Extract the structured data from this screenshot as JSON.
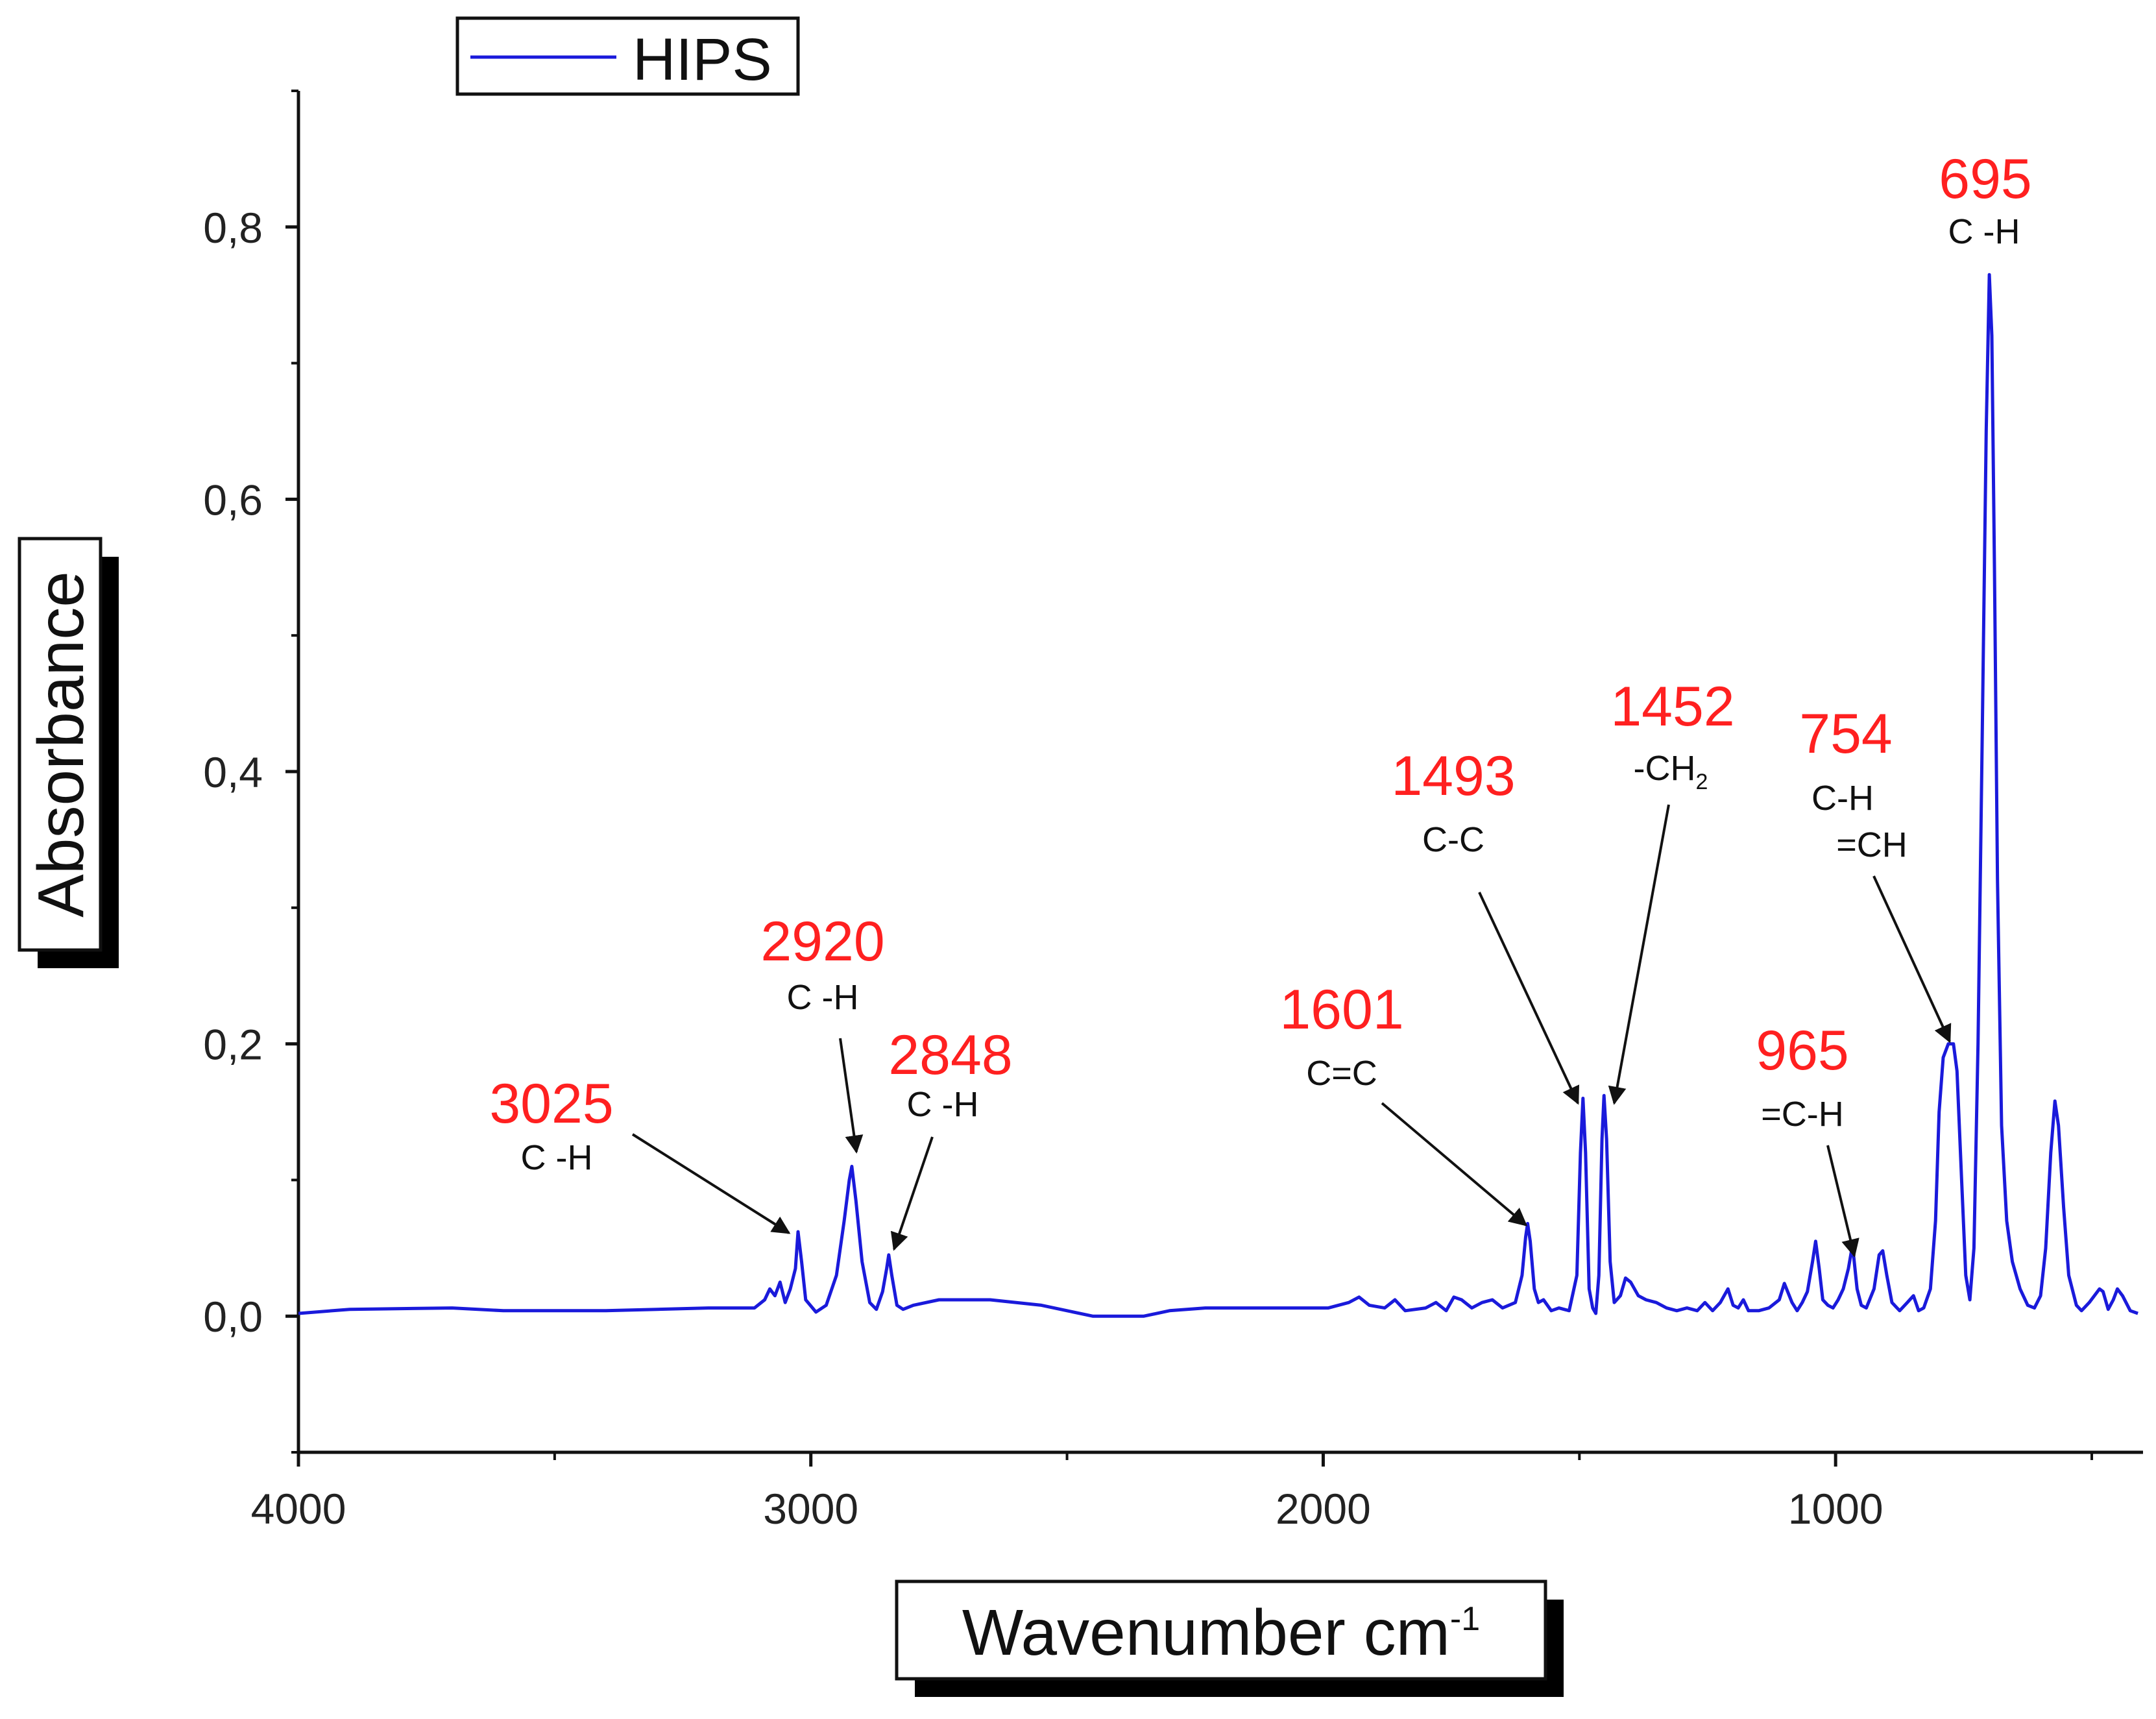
{
  "chart_data": {
    "type": "line",
    "xlabel": "Wavenumber  cm",
    "xlabel_sup": "-1",
    "ylabel": "Absorbance",
    "xlim": [
      4000,
      400
    ],
    "ylim": [
      -0.1,
      0.9
    ],
    "x_ticks": [
      4000,
      3000,
      2000,
      1000
    ],
    "x_tick_labels": [
      "4000",
      "3000",
      "2000",
      "1000"
    ],
    "y_ticks": [
      0.0,
      0.2,
      0.4,
      0.6,
      0.8
    ],
    "y_tick_labels": [
      "0,0",
      "0,2",
      "0,4",
      "0,6",
      "0,8"
    ],
    "legend": {
      "position": "top-left",
      "entries": [
        {
          "name": "HIPS",
          "color": "#1a1adb"
        }
      ]
    },
    "series": [
      {
        "name": "HIPS",
        "color": "#1a1adb",
        "points": [
          [
            4000,
            0.002
          ],
          [
            3900,
            0.005
          ],
          [
            3700,
            0.006
          ],
          [
            3600,
            0.004
          ],
          [
            3400,
            0.004
          ],
          [
            3300,
            0.005
          ],
          [
            3200,
            0.006
          ],
          [
            3110,
            0.006
          ],
          [
            3090,
            0.012
          ],
          [
            3080,
            0.02
          ],
          [
            3070,
            0.015
          ],
          [
            3060,
            0.025
          ],
          [
            3050,
            0.01
          ],
          [
            3040,
            0.02
          ],
          [
            3030,
            0.035
          ],
          [
            3025,
            0.062
          ],
          [
            3018,
            0.04
          ],
          [
            3010,
            0.012
          ],
          [
            2990,
            0.003
          ],
          [
            2970,
            0.008
          ],
          [
            2950,
            0.03
          ],
          [
            2935,
            0.07
          ],
          [
            2925,
            0.1
          ],
          [
            2920,
            0.11
          ],
          [
            2912,
            0.085
          ],
          [
            2900,
            0.04
          ],
          [
            2885,
            0.01
          ],
          [
            2872,
            0.005
          ],
          [
            2860,
            0.018
          ],
          [
            2852,
            0.035
          ],
          [
            2848,
            0.045
          ],
          [
            2842,
            0.03
          ],
          [
            2832,
            0.008
          ],
          [
            2820,
            0.005
          ],
          [
            2800,
            0.008
          ],
          [
            2750,
            0.012
          ],
          [
            2650,
            0.012
          ],
          [
            2550,
            0.008
          ],
          [
            2500,
            0.004
          ],
          [
            2450,
            0.0
          ],
          [
            2350,
            0.0
          ],
          [
            2300,
            0.004
          ],
          [
            2230,
            0.006
          ],
          [
            2100,
            0.006
          ],
          [
            1990,
            0.006
          ],
          [
            1950,
            0.01
          ],
          [
            1930,
            0.014
          ],
          [
            1910,
            0.008
          ],
          [
            1880,
            0.006
          ],
          [
            1860,
            0.012
          ],
          [
            1840,
            0.004
          ],
          [
            1800,
            0.006
          ],
          [
            1780,
            0.01
          ],
          [
            1760,
            0.004
          ],
          [
            1745,
            0.014
          ],
          [
            1730,
            0.012
          ],
          [
            1710,
            0.006
          ],
          [
            1690,
            0.01
          ],
          [
            1670,
            0.012
          ],
          [
            1650,
            0.006
          ],
          [
            1625,
            0.01
          ],
          [
            1612,
            0.03
          ],
          [
            1605,
            0.058
          ],
          [
            1601,
            0.068
          ],
          [
            1596,
            0.055
          ],
          [
            1588,
            0.02
          ],
          [
            1580,
            0.01
          ],
          [
            1570,
            0.012
          ],
          [
            1555,
            0.004
          ],
          [
            1540,
            0.006
          ],
          [
            1520,
            0.004
          ],
          [
            1505,
            0.03
          ],
          [
            1498,
            0.12
          ],
          [
            1493,
            0.16
          ],
          [
            1488,
            0.12
          ],
          [
            1481,
            0.02
          ],
          [
            1474,
            0.006
          ],
          [
            1468,
            0.002
          ],
          [
            1462,
            0.03
          ],
          [
            1456,
            0.13
          ],
          [
            1452,
            0.162
          ],
          [
            1447,
            0.13
          ],
          [
            1440,
            0.04
          ],
          [
            1432,
            0.01
          ],
          [
            1420,
            0.015
          ],
          [
            1410,
            0.028
          ],
          [
            1400,
            0.025
          ],
          [
            1385,
            0.015
          ],
          [
            1370,
            0.012
          ],
          [
            1350,
            0.01
          ],
          [
            1330,
            0.006
          ],
          [
            1310,
            0.004
          ],
          [
            1290,
            0.006
          ],
          [
            1270,
            0.004
          ],
          [
            1255,
            0.01
          ],
          [
            1240,
            0.004
          ],
          [
            1225,
            0.01
          ],
          [
            1210,
            0.02
          ],
          [
            1200,
            0.008
          ],
          [
            1190,
            0.006
          ],
          [
            1180,
            0.012
          ],
          [
            1170,
            0.004
          ],
          [
            1150,
            0.004
          ],
          [
            1130,
            0.006
          ],
          [
            1110,
            0.012
          ],
          [
            1100,
            0.024
          ],
          [
            1085,
            0.01
          ],
          [
            1075,
            0.004
          ],
          [
            1065,
            0.01
          ],
          [
            1055,
            0.018
          ],
          [
            1045,
            0.04
          ],
          [
            1039,
            0.055
          ],
          [
            1032,
            0.035
          ],
          [
            1025,
            0.012
          ],
          [
            1015,
            0.008
          ],
          [
            1005,
            0.006
          ],
          [
            995,
            0.012
          ],
          [
            985,
            0.02
          ],
          [
            975,
            0.035
          ],
          [
            968,
            0.05
          ],
          [
            965,
            0.045
          ],
          [
            958,
            0.02
          ],
          [
            950,
            0.008
          ],
          [
            940,
            0.006
          ],
          [
            925,
            0.02
          ],
          [
            915,
            0.045
          ],
          [
            908,
            0.048
          ],
          [
            900,
            0.03
          ],
          [
            890,
            0.01
          ],
          [
            875,
            0.004
          ],
          [
            860,
            0.01
          ],
          [
            848,
            0.015
          ],
          [
            838,
            0.004
          ],
          [
            828,
            0.006
          ],
          [
            815,
            0.02
          ],
          [
            805,
            0.07
          ],
          [
            798,
            0.15
          ],
          [
            790,
            0.19
          ],
          [
            780,
            0.2
          ],
          [
            770,
            0.2
          ],
          [
            763,
            0.18
          ],
          [
            754,
            0.1
          ],
          [
            746,
            0.03
          ],
          [
            738,
            0.012
          ],
          [
            730,
            0.05
          ],
          [
            722,
            0.2
          ],
          [
            714,
            0.42
          ],
          [
            706,
            0.65
          ],
          [
            700,
            0.765
          ],
          [
            695,
            0.72
          ],
          [
            690,
            0.55
          ],
          [
            684,
            0.32
          ],
          [
            676,
            0.14
          ],
          [
            666,
            0.07
          ],
          [
            655,
            0.04
          ],
          [
            640,
            0.02
          ],
          [
            625,
            0.008
          ],
          [
            612,
            0.006
          ],
          [
            600,
            0.015
          ],
          [
            590,
            0.05
          ],
          [
            580,
            0.12
          ],
          [
            572,
            0.158
          ],
          [
            565,
            0.14
          ],
          [
            555,
            0.08
          ],
          [
            545,
            0.03
          ],
          [
            530,
            0.008
          ],
          [
            520,
            0.004
          ],
          [
            505,
            0.01
          ],
          [
            495,
            0.015
          ],
          [
            485,
            0.02
          ],
          [
            478,
            0.018
          ],
          [
            468,
            0.005
          ],
          [
            458,
            0.012
          ],
          [
            450,
            0.02
          ],
          [
            440,
            0.015
          ],
          [
            425,
            0.004
          ],
          [
            410,
            0.002
          ]
        ]
      }
    ],
    "annotations": [
      {
        "peak": "3025",
        "group": "C -H",
        "at": [
          3025,
          0.062
        ]
      },
      {
        "peak": "2920",
        "group": "C -H",
        "at": [
          2918,
          0.12
        ]
      },
      {
        "peak": "2848",
        "group": "C -H",
        "at": [
          2848,
          0.045
        ]
      },
      {
        "peak": "1601",
        "group": "C=C",
        "at": [
          1601,
          0.07
        ]
      },
      {
        "peak": "1493",
        "group": "C-C",
        "at": [
          1494,
          0.158
        ]
      },
      {
        "peak": "1452",
        "group": "-CH",
        "group_sub": "2",
        "at": [
          1452,
          0.158
        ]
      },
      {
        "peak": "965",
        "group": "=C-H",
        "at": [
          965,
          0.05
        ]
      },
      {
        "peak": "754",
        "group": "C-H",
        "group_line2": "=CH",
        "at": [
          762,
          0.2
        ]
      },
      {
        "peak": "695",
        "group": "C -H",
        "at": null
      }
    ]
  }
}
